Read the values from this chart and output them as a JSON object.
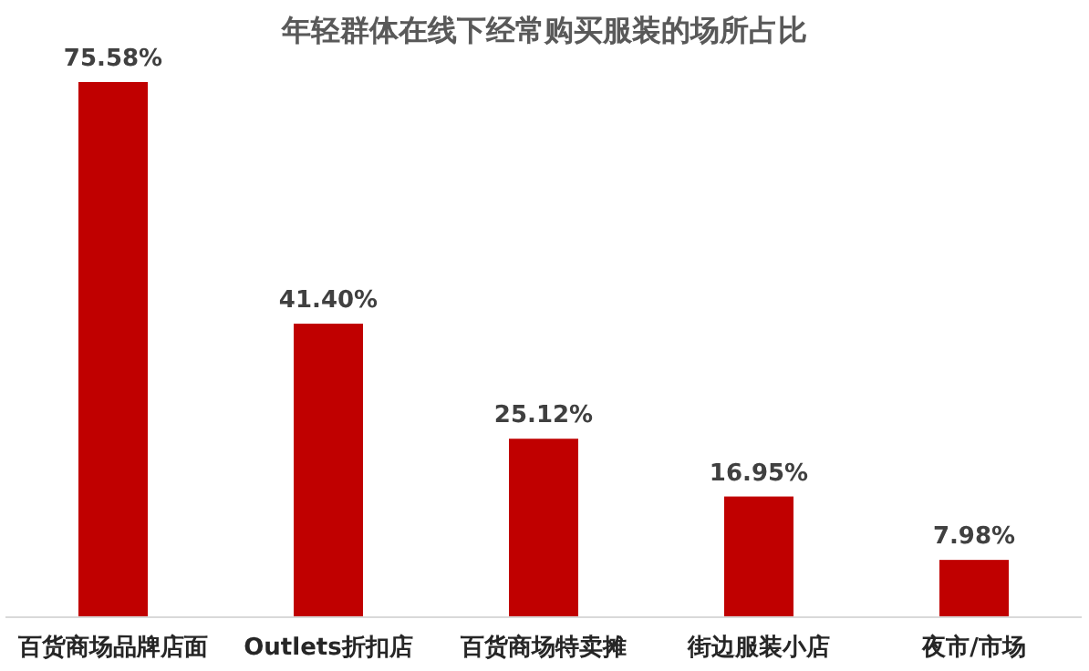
{
  "chart_data": {
    "type": "bar",
    "title": "年轻群体在线下经常购买服装的场所占比",
    "categories": [
      "百货商场品牌店面",
      "Outlets折扣店",
      "百货商场特卖摊",
      "街边服装小店",
      "夜市/市场"
    ],
    "values": [
      75.58,
      41.4,
      25.12,
      16.95,
      7.98
    ],
    "value_labels": [
      "75.58%",
      "41.40%",
      "25.12%",
      "16.95%",
      "7.98%"
    ],
    "color": "#c00000"
  }
}
